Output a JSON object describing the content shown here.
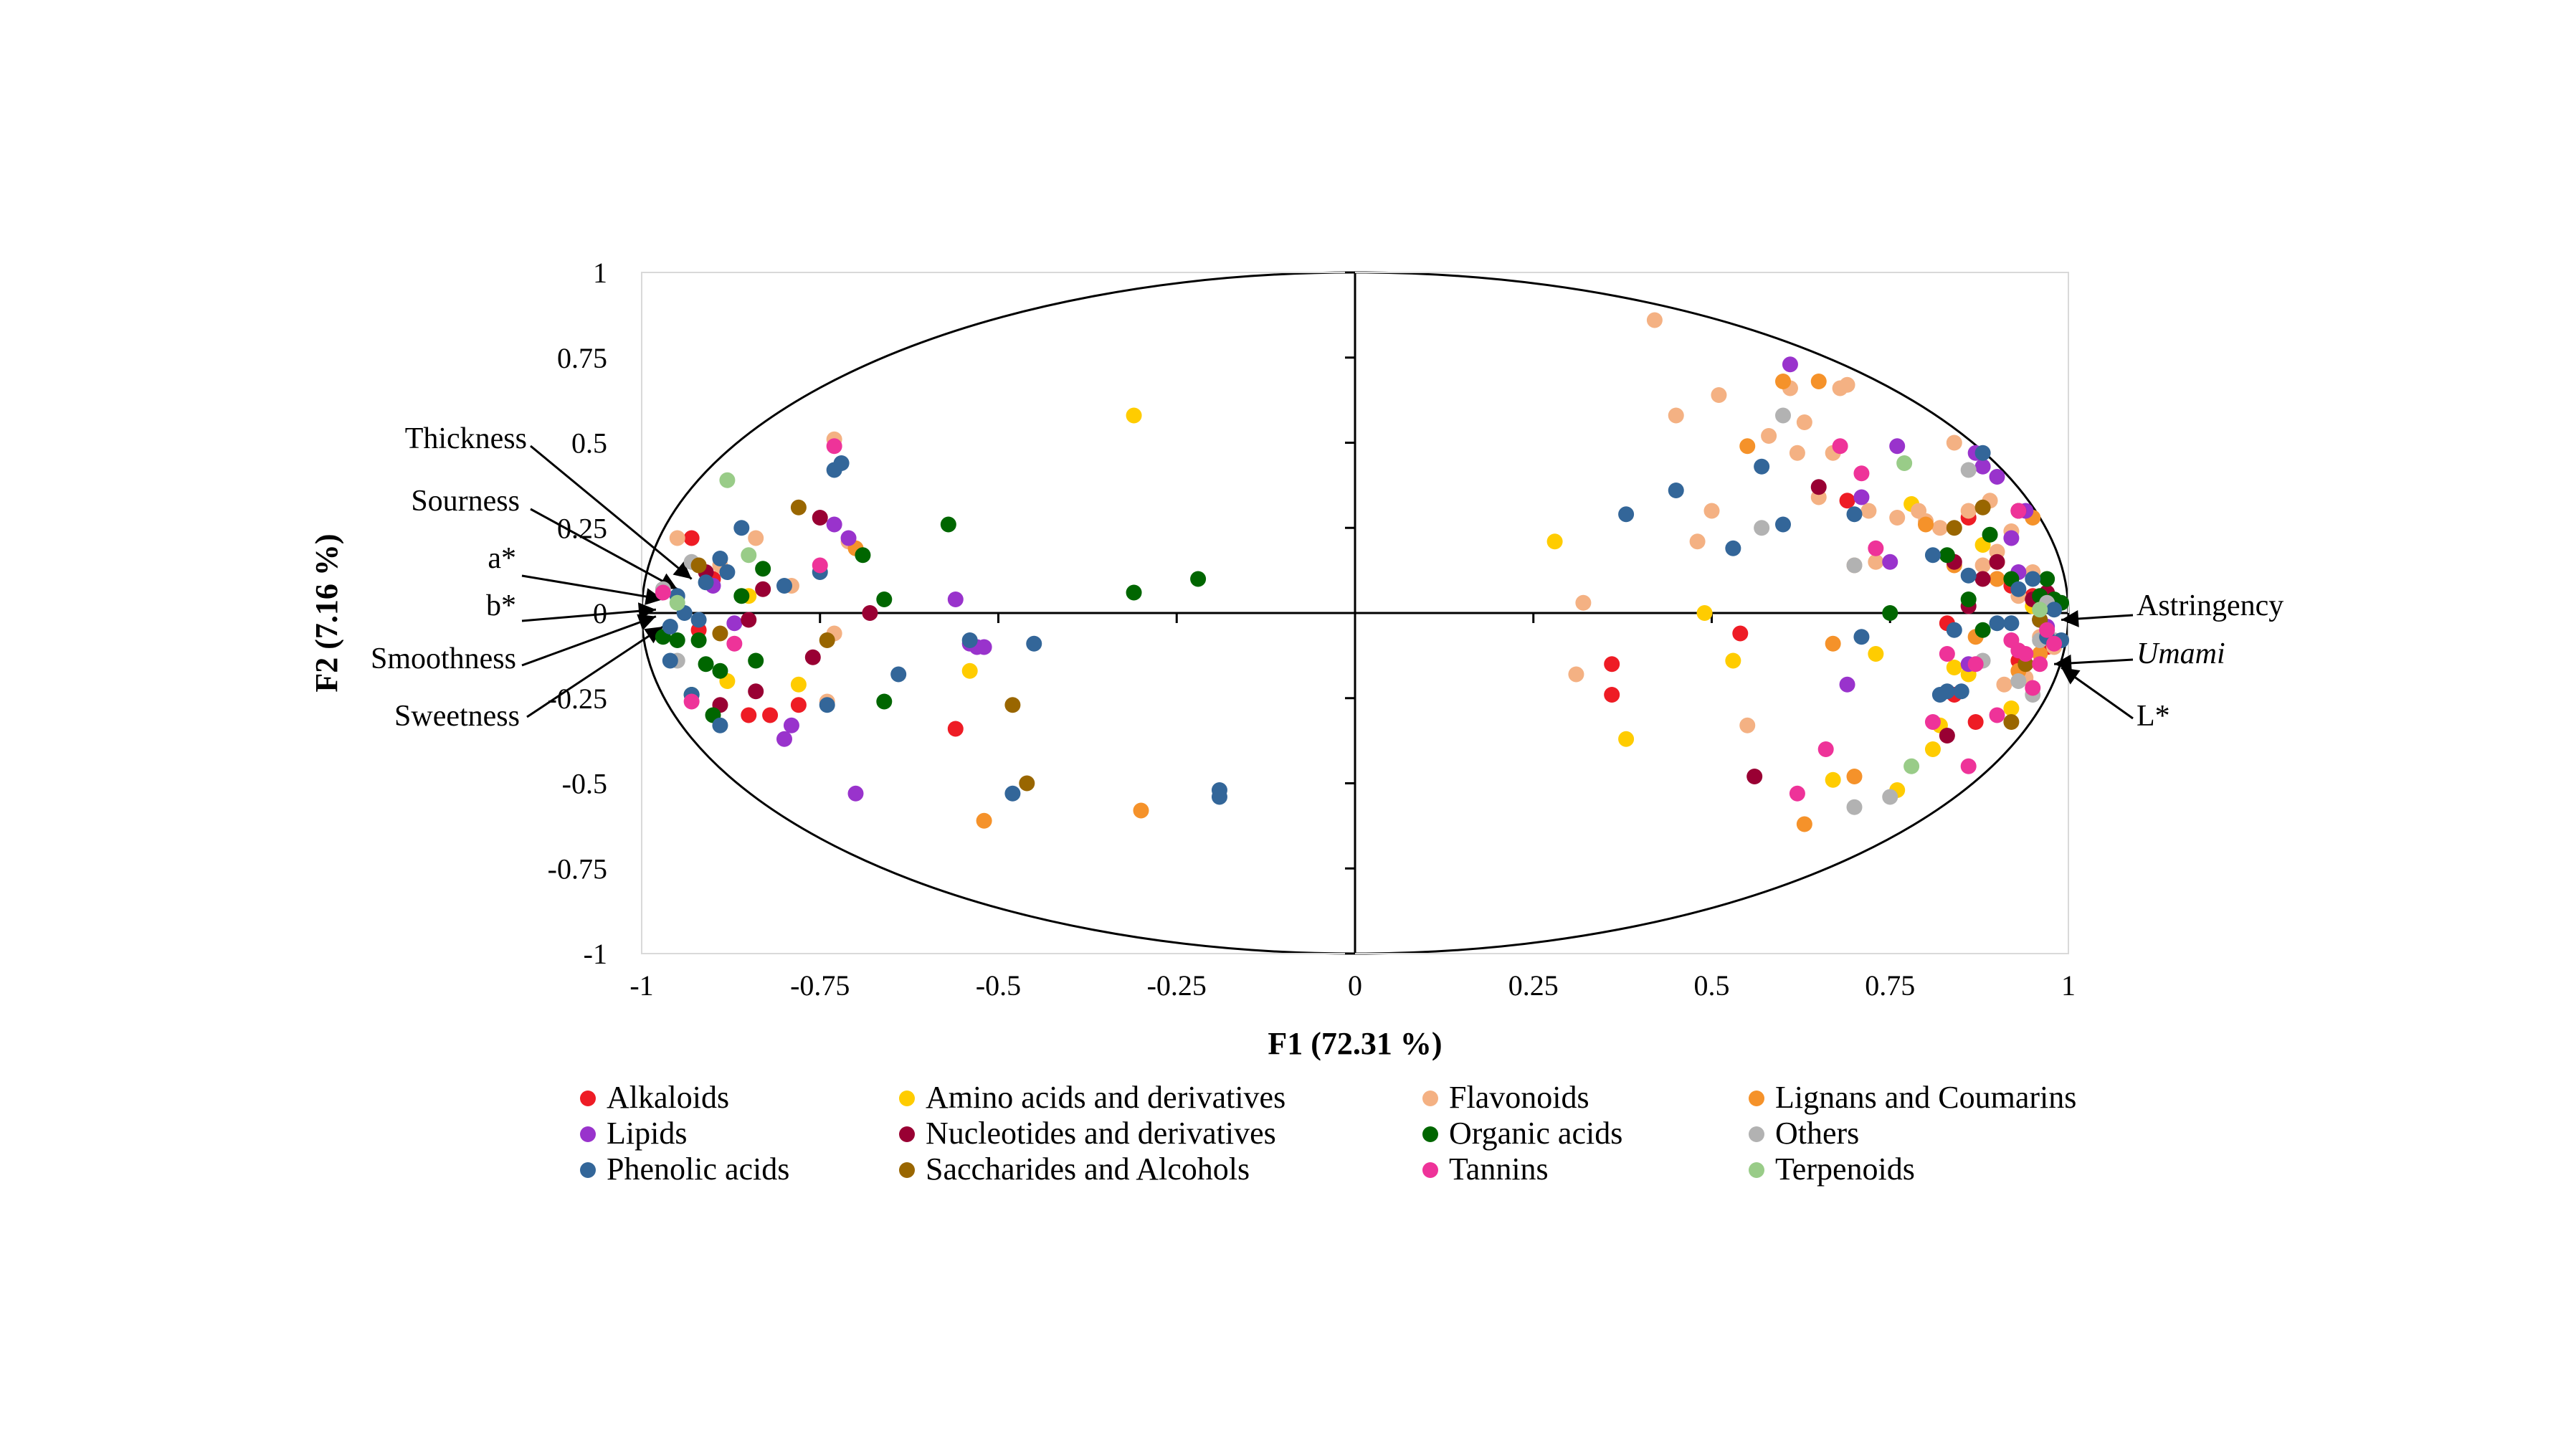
{
  "chart_data": {
    "type": "scatter",
    "xlabel": "F1 (72.31 %)",
    "ylabel": "F2 (7.16 %)",
    "xlim": [
      -1,
      1
    ],
    "ylim": [
      -1,
      1
    ],
    "x_ticks": [
      "-1",
      "-0.75",
      "-0.5",
      "-0.25",
      "0",
      "0.25",
      "0.5",
      "0.75",
      "1"
    ],
    "y_ticks": [
      "1",
      "0.75",
      "0.5",
      "0.25",
      "0",
      "-0.25",
      "-0.5",
      "-0.75",
      "-1"
    ],
    "grid": false,
    "correlation_circle": true,
    "legend_position": "bottom",
    "variables": [
      {
        "label": "Thickness",
        "x": -0.93,
        "y": 0.1,
        "italic": false
      },
      {
        "label": "Sourness",
        "x": -0.95,
        "y": 0.07,
        "italic": false
      },
      {
        "label": "a*",
        "x": -0.97,
        "y": 0.04,
        "italic": false
      },
      {
        "label": "b*",
        "x": -0.98,
        "y": 0.01,
        "italic": false
      },
      {
        "label": "Smoothness",
        "x": -0.98,
        "y": -0.01,
        "italic": false
      },
      {
        "label": "Sweetness",
        "x": -0.97,
        "y": -0.04,
        "italic": false
      },
      {
        "label": "Astringency",
        "x": 0.99,
        "y": -0.02,
        "italic": false
      },
      {
        "label": "Umami",
        "x": 0.98,
        "y": -0.15,
        "italic": true
      },
      {
        "label": "L*",
        "x": 0.99,
        "y": -0.16,
        "italic": false
      }
    ],
    "series": [
      {
        "name": "Alkaloids",
        "color": "#ee1c25",
        "points": [
          [
            -0.93,
            0.22
          ],
          [
            -0.85,
            -0.3
          ],
          [
            -0.82,
            -0.3
          ],
          [
            -0.78,
            -0.27
          ],
          [
            -0.56,
            -0.34
          ],
          [
            -0.9,
            0.1
          ],
          [
            -0.92,
            -0.05
          ],
          [
            0.36,
            -0.15
          ],
          [
            0.36,
            -0.24
          ],
          [
            0.54,
            -0.06
          ],
          [
            0.83,
            -0.03
          ],
          [
            0.84,
            -0.24
          ],
          [
            0.87,
            -0.32
          ],
          [
            0.9,
            0.1
          ],
          [
            0.93,
            -0.14
          ],
          [
            0.95,
            0.05
          ],
          [
            0.97,
            -0.1
          ],
          [
            0.92,
            0.08
          ],
          [
            0.69,
            0.33
          ],
          [
            0.86,
            0.28
          ]
        ]
      },
      {
        "name": "Amino acids and derivatives",
        "color": "#ffcc00",
        "points": [
          [
            -0.31,
            0.58
          ],
          [
            -0.54,
            -0.17
          ],
          [
            -0.78,
            -0.21
          ],
          [
            -0.88,
            -0.2
          ],
          [
            -0.85,
            0.05
          ],
          [
            0.28,
            0.21
          ],
          [
            0.38,
            -0.37
          ],
          [
            0.49,
            0
          ],
          [
            0.53,
            -0.14
          ],
          [
            0.67,
            -0.49
          ],
          [
            0.73,
            -0.12
          ],
          [
            0.78,
            0.32
          ],
          [
            0.81,
            -0.4
          ],
          [
            0.82,
            -0.33
          ],
          [
            0.84,
            -0.16
          ],
          [
            0.86,
            -0.18
          ],
          [
            0.88,
            0.2
          ],
          [
            0.9,
            0.15
          ],
          [
            0.92,
            -0.28
          ],
          [
            0.95,
            0.02
          ],
          [
            0.97,
            0.03
          ],
          [
            0.76,
            -0.52
          ]
        ]
      },
      {
        "name": "Flavonoids",
        "color": "#f4b183",
        "points": [
          [
            -0.73,
            0.51
          ],
          [
            -0.79,
            0.08
          ],
          [
            -0.84,
            0.22
          ],
          [
            -0.89,
            0.14
          ],
          [
            -0.71,
            0.21
          ],
          [
            -0.73,
            -0.06
          ],
          [
            -0.74,
            -0.26
          ],
          [
            -0.95,
            0.22
          ],
          [
            0.32,
            0.03
          ],
          [
            0.31,
            -0.18
          ],
          [
            0.42,
            0.86
          ],
          [
            0.45,
            0.58
          ],
          [
            0.48,
            0.21
          ],
          [
            0.5,
            0.3
          ],
          [
            0.51,
            0.64
          ],
          [
            0.55,
            -0.33
          ],
          [
            0.58,
            0.52
          ],
          [
            0.61,
            0.66
          ],
          [
            0.62,
            0.47
          ],
          [
            0.63,
            0.56
          ],
          [
            0.65,
            0.34
          ],
          [
            0.67,
            0.47
          ],
          [
            0.68,
            0.66
          ],
          [
            0.69,
            0.67
          ],
          [
            0.7,
            0.14
          ],
          [
            0.72,
            0.3
          ],
          [
            0.73,
            0.15
          ],
          [
            0.76,
            0.28
          ],
          [
            0.79,
            0.3
          ],
          [
            0.8,
            0.27
          ],
          [
            0.82,
            0.25
          ],
          [
            0.84,
            0.5
          ],
          [
            0.86,
            0.3
          ],
          [
            0.88,
            0.14
          ],
          [
            0.9,
            0.18
          ],
          [
            0.92,
            0.24
          ],
          [
            0.93,
            0.05
          ],
          [
            0.94,
            -0.19
          ],
          [
            0.95,
            0.12
          ],
          [
            0.96,
            -0.07
          ],
          [
            0.97,
            0.05
          ],
          [
            0.98,
            -0.1
          ],
          [
            0.91,
            -0.21
          ],
          [
            0.89,
            0.33
          ]
        ]
      },
      {
        "name": "Lignans and Coumarins",
        "color": "#f5922a",
        "points": [
          [
            -0.3,
            -0.58
          ],
          [
            -0.52,
            -0.61
          ],
          [
            -0.7,
            0.19
          ],
          [
            0.55,
            0.49
          ],
          [
            0.6,
            0.68
          ],
          [
            0.65,
            0.68
          ],
          [
            0.67,
            -0.09
          ],
          [
            0.63,
            -0.62
          ],
          [
            0.7,
            -0.48
          ],
          [
            0.8,
            0.26
          ],
          [
            0.84,
            0.14
          ],
          [
            0.87,
            -0.07
          ],
          [
            0.9,
            0.1
          ],
          [
            0.93,
            -0.17
          ],
          [
            0.96,
            -0.12
          ],
          [
            0.95,
            0.28
          ]
        ]
      },
      {
        "name": "Lipids",
        "color": "#9933cc",
        "points": [
          [
            -0.73,
            0.26
          ],
          [
            -0.71,
            0.22
          ],
          [
            -0.7,
            -0.53
          ],
          [
            -0.79,
            -0.33
          ],
          [
            -0.8,
            -0.37
          ],
          [
            -0.87,
            -0.03
          ],
          [
            -0.56,
            0.04
          ],
          [
            -0.52,
            -0.1
          ],
          [
            -0.54,
            -0.09
          ],
          [
            -0.53,
            -0.1
          ],
          [
            -0.9,
            0.08
          ],
          [
            0.61,
            0.73
          ],
          [
            0.69,
            -0.21
          ],
          [
            0.71,
            0.34
          ],
          [
            0.76,
            0.49
          ],
          [
            0.87,
            0.47
          ],
          [
            0.88,
            0.43
          ],
          [
            0.9,
            0.4
          ],
          [
            0.92,
            0.22
          ],
          [
            0.93,
            0.12
          ],
          [
            0.94,
            0.3
          ],
          [
            0.96,
            -0.02
          ],
          [
            0.97,
            -0.04
          ],
          [
            0.86,
            -0.15
          ],
          [
            0.75,
            0.15
          ]
        ]
      },
      {
        "name": "Nucleotides and derivatives",
        "color": "#990033",
        "points": [
          [
            -0.75,
            0.28
          ],
          [
            -0.76,
            -0.13
          ],
          [
            -0.84,
            -0.23
          ],
          [
            -0.83,
            0.07
          ],
          [
            -0.85,
            -0.02
          ],
          [
            -0.68,
            0
          ],
          [
            -0.91,
            0.12
          ],
          [
            -0.89,
            -0.27
          ],
          [
            0.56,
            -0.48
          ],
          [
            0.65,
            0.37
          ],
          [
            0.83,
            -0.36
          ],
          [
            0.86,
            0.02
          ],
          [
            0.88,
            0.1
          ],
          [
            0.9,
            0.15
          ],
          [
            0.93,
            0.3
          ],
          [
            0.95,
            0.04
          ],
          [
            0.97,
            0.06
          ],
          [
            0.84,
            0.15
          ]
        ]
      },
      {
        "name": "Organic acids",
        "color": "#006600",
        "points": [
          [
            -0.57,
            0.26
          ],
          [
            -0.31,
            0.06
          ],
          [
            -0.22,
            0.1
          ],
          [
            -0.66,
            0.04
          ],
          [
            -0.69,
            0.17
          ],
          [
            -0.66,
            -0.26
          ],
          [
            -0.92,
            -0.08
          ],
          [
            -0.91,
            -0.15
          ],
          [
            -0.9,
            -0.3
          ],
          [
            -0.93,
            -0.24
          ],
          [
            -0.95,
            -0.08
          ],
          [
            -0.97,
            -0.07
          ],
          [
            -0.89,
            -0.17
          ],
          [
            -0.84,
            -0.14
          ],
          [
            -0.86,
            0.05
          ],
          [
            -0.83,
            0.13
          ],
          [
            0.75,
            0
          ],
          [
            0.83,
            0.17
          ],
          [
            0.86,
            0.04
          ],
          [
            0.88,
            -0.05
          ],
          [
            0.89,
            0.23
          ],
          [
            0.92,
            0.1
          ],
          [
            0.96,
            0.05
          ],
          [
            0.98,
            0.04
          ],
          [
            0.99,
            0.03
          ],
          [
            0.97,
            0.1
          ]
        ]
      },
      {
        "name": "Others",
        "color": "#b2b2b2",
        "points": [
          [
            -0.93,
            0.15
          ],
          [
            -0.97,
            0.07
          ],
          [
            -0.95,
            -0.14
          ],
          [
            0.6,
            0.58
          ],
          [
            0.57,
            0.25
          ],
          [
            0.7,
            -0.57
          ],
          [
            0.75,
            -0.54
          ],
          [
            0.7,
            0.14
          ],
          [
            0.86,
            0.42
          ],
          [
            0.88,
            -0.14
          ],
          [
            0.93,
            -0.2
          ],
          [
            0.96,
            -0.08
          ],
          [
            0.98,
            -0.08
          ],
          [
            0.97,
            0.03
          ],
          [
            0.95,
            -0.24
          ]
        ]
      },
      {
        "name": "Phenolic acids",
        "color": "#336699",
        "points": [
          [
            -0.73,
            0.42
          ],
          [
            -0.72,
            0.44
          ],
          [
            -0.75,
            0.12
          ],
          [
            -0.8,
            0.08
          ],
          [
            -0.88,
            0.12
          ],
          [
            -0.86,
            0.25
          ],
          [
            -0.89,
            0.16
          ],
          [
            -0.91,
            0.09
          ],
          [
            -0.95,
            0.05
          ],
          [
            -0.96,
            -0.04
          ],
          [
            -0.94,
            0
          ],
          [
            -0.92,
            -0.02
          ],
          [
            -0.89,
            -0.33
          ],
          [
            -0.93,
            -0.24
          ],
          [
            -0.96,
            -0.14
          ],
          [
            -0.74,
            -0.27
          ],
          [
            -0.64,
            -0.18
          ],
          [
            -0.54,
            -0.08
          ],
          [
            -0.45,
            -0.09
          ],
          [
            -0.48,
            -0.53
          ],
          [
            -0.19,
            -0.52
          ],
          [
            -0.19,
            -0.54
          ],
          [
            0.38,
            0.29
          ],
          [
            0.45,
            0.36
          ],
          [
            0.53,
            0.19
          ],
          [
            0.57,
            0.43
          ],
          [
            0.6,
            0.26
          ],
          [
            0.71,
            -0.07
          ],
          [
            0.7,
            0.29
          ],
          [
            0.81,
            0.17
          ],
          [
            0.82,
            -0.24
          ],
          [
            0.83,
            -0.23
          ],
          [
            0.84,
            -0.05
          ],
          [
            0.85,
            -0.23
          ],
          [
            0.86,
            0.11
          ],
          [
            0.88,
            0.47
          ],
          [
            0.9,
            -0.03
          ],
          [
            0.92,
            -0.03
          ],
          [
            0.93,
            0.07
          ],
          [
            0.95,
            0.1
          ],
          [
            0.96,
            -0.02
          ],
          [
            0.97,
            -0.07
          ],
          [
            0.98,
            0.01
          ],
          [
            0.99,
            -0.08
          ]
        ]
      },
      {
        "name": "Saccharides and Alcohols",
        "color": "#996600",
        "points": [
          [
            -0.78,
            0.31
          ],
          [
            -0.74,
            -0.08
          ],
          [
            -0.46,
            -0.5
          ],
          [
            -0.48,
            -0.27
          ],
          [
            -0.89,
            -0.06
          ],
          [
            -0.92,
            0.14
          ],
          [
            0.84,
            0.25
          ],
          [
            0.88,
            0.31
          ],
          [
            0.92,
            -0.32
          ],
          [
            0.94,
            -0.15
          ],
          [
            0.96,
            -0.02
          ]
        ]
      },
      {
        "name": "Tannins",
        "color": "#ee3399",
        "points": [
          [
            -0.73,
            0.49
          ],
          [
            -0.75,
            0.14
          ],
          [
            -0.87,
            -0.09
          ],
          [
            -0.93,
            -0.26
          ],
          [
            -0.97,
            0.06
          ],
          [
            0.68,
            0.49
          ],
          [
            0.71,
            0.41
          ],
          [
            0.73,
            0.19
          ],
          [
            0.66,
            -0.4
          ],
          [
            0.62,
            -0.53
          ],
          [
            0.81,
            -0.32
          ],
          [
            0.83,
            -0.12
          ],
          [
            0.86,
            -0.45
          ],
          [
            0.87,
            -0.15
          ],
          [
            0.9,
            -0.3
          ],
          [
            0.92,
            -0.08
          ],
          [
            0.93,
            -0.11
          ],
          [
            0.94,
            -0.12
          ],
          [
            0.95,
            -0.22
          ],
          [
            0.96,
            -0.15
          ],
          [
            0.97,
            -0.05
          ],
          [
            0.98,
            -0.09
          ],
          [
            0.93,
            0.3
          ]
        ]
      },
      {
        "name": "Terpenoids",
        "color": "#99cc88",
        "points": [
          [
            -0.88,
            0.39
          ],
          [
            -0.85,
            0.17
          ],
          [
            -0.95,
            0.03
          ],
          [
            0.77,
            0.44
          ],
          [
            0.78,
            -0.45
          ],
          [
            0.96,
            0.01
          ]
        ]
      }
    ]
  }
}
